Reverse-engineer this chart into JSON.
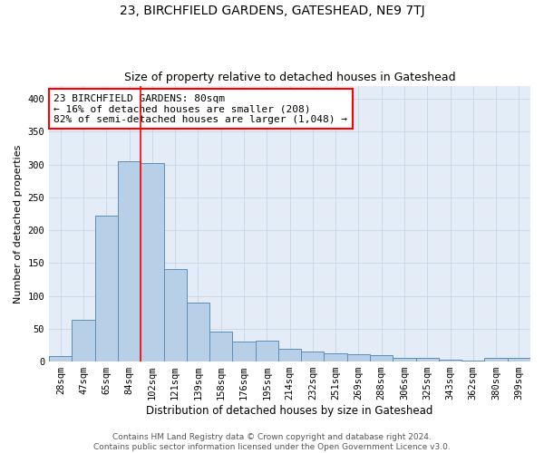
{
  "title": "23, BIRCHFIELD GARDENS, GATESHEAD, NE9 7TJ",
  "subtitle": "Size of property relative to detached houses in Gateshead",
  "xlabel": "Distribution of detached houses by size in Gateshead",
  "ylabel": "Number of detached properties",
  "categories": [
    "28sqm",
    "47sqm",
    "65sqm",
    "84sqm",
    "102sqm",
    "121sqm",
    "139sqm",
    "158sqm",
    "176sqm",
    "195sqm",
    "214sqm",
    "232sqm",
    "251sqm",
    "269sqm",
    "288sqm",
    "306sqm",
    "325sqm",
    "343sqm",
    "362sqm",
    "380sqm",
    "399sqm"
  ],
  "values": [
    8,
    63,
    222,
    305,
    302,
    141,
    90,
    46,
    30,
    32,
    20,
    15,
    13,
    11,
    10,
    5,
    5,
    3,
    2,
    5,
    5
  ],
  "bar_color": "#b8cfe8",
  "bar_edge_color": "#5b8db8",
  "vline_x": 3.5,
  "vline_color": "red",
  "annotation_line1": "23 BIRCHFIELD GARDENS: 80sqm",
  "annotation_line2": "← 16% of detached houses are smaller (208)",
  "annotation_line3": "82% of semi-detached houses are larger (1,048) →",
  "annotation_box_color": "white",
  "annotation_box_edgecolor": "red",
  "ylim": [
    0,
    420
  ],
  "yticks": [
    0,
    50,
    100,
    150,
    200,
    250,
    300,
    350,
    400
  ],
  "grid_color": "#c8d4e4",
  "background_color": "#e4ecf7",
  "footer_text": "Contains HM Land Registry data © Crown copyright and database right 2024.\nContains public sector information licensed under the Open Government Licence v3.0.",
  "title_fontsize": 10,
  "subtitle_fontsize": 9,
  "xlabel_fontsize": 8.5,
  "ylabel_fontsize": 8,
  "tick_fontsize": 7.5,
  "annotation_fontsize": 8,
  "footer_fontsize": 6.5
}
